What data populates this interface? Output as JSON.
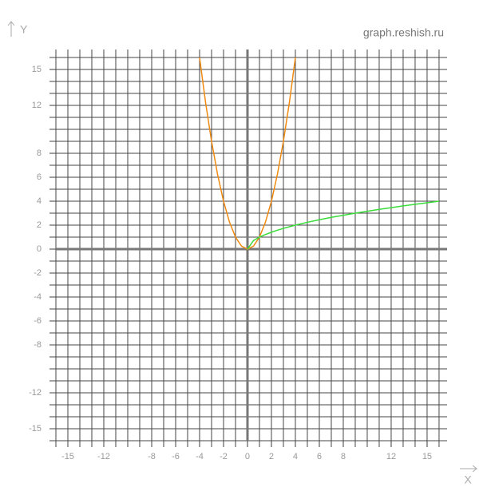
{
  "chart_data": {
    "type": "line",
    "watermark": "graph.reshish.ru",
    "x_label": "X",
    "y_label": "Y",
    "x": [
      -4,
      -3.5,
      -3,
      -2.5,
      -2,
      -1.5,
      -1,
      -0.5,
      0,
      0.5,
      1,
      1.5,
      2,
      2.5,
      3,
      3.5,
      4,
      5,
      6,
      7,
      8,
      9,
      10,
      11,
      12,
      13,
      14,
      15,
      16
    ],
    "series": [
      {
        "color": "#f08a10",
        "values": [
          16,
          12.25,
          9,
          6.25,
          4,
          2.25,
          1,
          0.25,
          0,
          0.25,
          1,
          2.25,
          4,
          6.25,
          9,
          12.25,
          16,
          null,
          null,
          null,
          null,
          null,
          null,
          null,
          null,
          null,
          null,
          null,
          null
        ]
      },
      {
        "color": "#3adc3a",
        "values": [
          null,
          null,
          null,
          null,
          null,
          null,
          null,
          null,
          0,
          0.71,
          1,
          1.22,
          1.41,
          1.58,
          1.73,
          1.87,
          2,
          2.24,
          2.45,
          2.65,
          2.83,
          3,
          3.16,
          3.32,
          3.46,
          3.61,
          3.74,
          3.87,
          4
        ]
      }
    ],
    "xlim": [
      -16,
      16.67
    ],
    "ylim": [
      -16,
      16.67
    ],
    "xticks": [
      -15,
      -12,
      -8,
      -6,
      -4,
      -2,
      0,
      2,
      4,
      6,
      8,
      12,
      15
    ],
    "yticks": [
      -15,
      -12,
      -8,
      -6,
      -4,
      -2,
      0,
      2,
      4,
      6,
      8,
      12,
      15
    ],
    "grid": true
  }
}
